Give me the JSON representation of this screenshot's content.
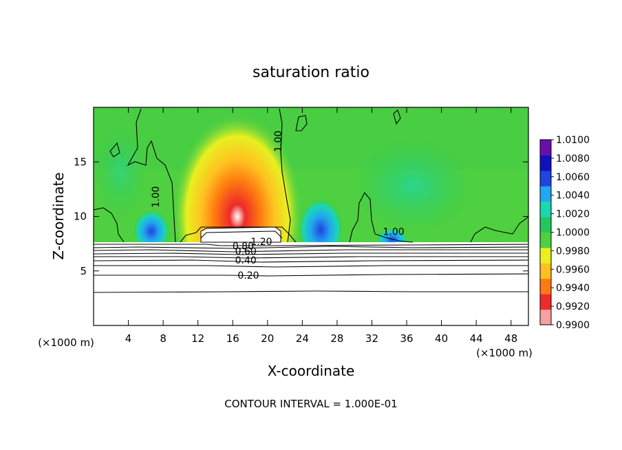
{
  "chart_data": {
    "type": "heatmap",
    "title": "saturation ratio",
    "xlabel": "X-coordinate",
    "ylabel": "Z-coordinate",
    "x_unit_left": "(×1000 m)",
    "x_unit_right": "(×1000 m)",
    "xlim": [
      0,
      50
    ],
    "ylim": [
      0,
      20
    ],
    "x_ticks": [
      4,
      8,
      12,
      16,
      20,
      24,
      28,
      32,
      36,
      40,
      44,
      48
    ],
    "y_ticks": [
      5,
      10,
      15
    ],
    "footer": "CONTOUR INTERVAL = 1.000E-01",
    "colorbar": {
      "range": [
        0.99,
        1.01
      ],
      "ticks": [
        "1.0100",
        "1.0080",
        "1.0060",
        "1.0040",
        "1.0020",
        "1.0000",
        "0.9980",
        "0.9960",
        "0.9940",
        "0.9920",
        "0.9900"
      ],
      "colors": [
        "#f7a0a0",
        "#ee2a2a",
        "#ff7a10",
        "#ffc020",
        "#e8f020",
        "#4fd040",
        "#22c85a",
        "#1bd8b0",
        "#22a8f0",
        "#2044e0",
        "#1010c0",
        "#6a10a8"
      ]
    },
    "contour_labels": [
      {
        "text": "1.00",
        "x": 7.5,
        "z": 12.1
      },
      {
        "text": "1.00",
        "x": 21.6,
        "z": 17.2
      },
      {
        "text": "1.00",
        "x": 34.5,
        "z": 8.6
      },
      {
        "text": "1.20",
        "x": 19.3,
        "z": 7.7
      },
      {
        "text": "0.80",
        "x": 17.2,
        "z": 7.3
      },
      {
        "text": "0.60",
        "x": 17.5,
        "z": 6.8
      },
      {
        "text": "0.40",
        "x": 17.5,
        "z": 6.0
      },
      {
        "text": "0.20",
        "x": 17.8,
        "z": 4.6
      }
    ],
    "grid": false
  }
}
